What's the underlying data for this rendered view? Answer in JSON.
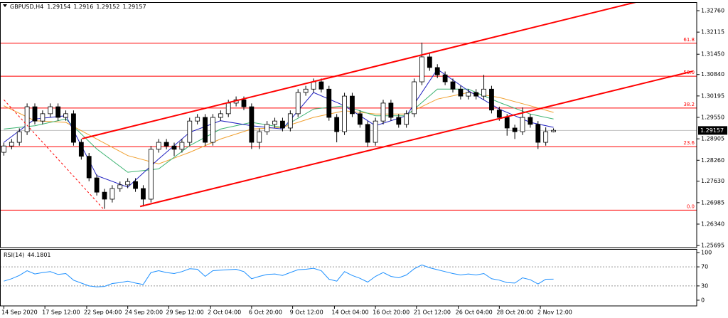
{
  "chart_data": {
    "type": "candlestick",
    "header": {
      "symbol": "GBPUSD,H4",
      "ohlc": [
        1.29154,
        1.2916,
        1.29152,
        1.29157
      ]
    },
    "xlim": [
      -0.5,
      89.5
    ],
    "ylim": [
      1.25634,
      1.33017
    ],
    "yticks": [
      {
        "value": 1.3276,
        "label": "1.32760"
      },
      1.32115,
      {
        "value": 1.3145,
        "label": "1.31450"
      },
      {
        "value": 1.3084,
        "label": "1.30840"
      },
      1.30195,
      {
        "value": 1.2955,
        "label": "1.29550"
      },
      1.28905,
      {
        "value": 1.2826,
        "label": "1.28260"
      },
      {
        "value": 1.2763,
        "label": "1.27630"
      },
      1.26985,
      {
        "value": 1.2634,
        "label": "1.26340"
      },
      1.25695
    ],
    "xticks": [
      {
        "value": 0,
        "label": "14 Sep 2020"
      },
      {
        "value": 5.3,
        "label": "17 Sep 12:00"
      },
      {
        "value": 10.7,
        "label": "22 Sep 04:00"
      },
      {
        "value": 16,
        "label": "24 Sep 20:00"
      },
      {
        "value": 21.3,
        "label": "29 Sep 12:00"
      },
      {
        "value": 26.7,
        "label": "2 Oct 04:00"
      },
      {
        "value": 32,
        "label": "6 Oct 20:00"
      },
      {
        "value": 37.3,
        "label": "9 Oct 12:00"
      },
      {
        "value": 42.7,
        "label": "14 Oct 04:00"
      },
      {
        "value": 48,
        "label": "16 Oct 20:00"
      },
      {
        "value": 53.3,
        "label": "21 Oct 12:00"
      },
      {
        "value": 58.7,
        "label": "26 Oct 04:00"
      },
      {
        "value": 64,
        "label": "28 Oct 20:00"
      },
      {
        "value": 69.3,
        "label": "2 Nov 12:00"
      }
    ],
    "candles": {
      "bull_color": "#ffffff",
      "bear_color": "#000000",
      "open": [
        1.285,
        1.2869,
        1.288,
        1.2912,
        1.2987,
        1.2944,
        1.2966,
        1.2987,
        1.2955,
        1.2966,
        1.288,
        1.2838,
        1.2773,
        1.273,
        1.2709,
        1.2741,
        1.2752,
        1.2762,
        1.2741,
        1.2709,
        1.2859,
        1.288,
        1.2869,
        1.2859,
        1.288,
        1.2944,
        1.2955,
        1.288,
        1.2955,
        1.2966,
        1.2998,
        1.3008,
        1.2987,
        1.288,
        1.2912,
        1.2934,
        1.2944,
        1.2923,
        1.2966,
        1.303,
        1.304,
        1.3062,
        1.304,
        1.2955,
        1.2912,
        1.3019,
        1.2966,
        1.2934,
        1.288,
        1.2944,
        1.2998,
        1.2955,
        1.2934,
        1.2966,
        1.3062,
        1.3137,
        1.3105,
        1.3083,
        1.3062,
        1.304,
        1.3019,
        1.303,
        1.3019,
        1.304,
        1.2977,
        1.2955,
        1.2923,
        1.2912,
        1.2955,
        1.2934,
        1.288,
        1.2912
      ],
      "high": [
        1.2879,
        1.289,
        1.2922,
        1.2997,
        1.2997,
        1.2976,
        1.2997,
        1.2997,
        1.2976,
        1.2976,
        1.289,
        1.2848,
        1.2783,
        1.274,
        1.2751,
        1.2762,
        1.2772,
        1.2772,
        1.2751,
        1.2869,
        1.289,
        1.289,
        1.2879,
        1.289,
        1.2954,
        1.2965,
        1.2965,
        1.2965,
        1.2976,
        1.3008,
        1.3018,
        1.3018,
        1.2997,
        1.2922,
        1.2944,
        1.2954,
        1.2954,
        1.2976,
        1.304,
        1.305,
        1.3072,
        1.3072,
        1.305,
        1.2965,
        1.3029,
        1.3029,
        1.2976,
        1.2944,
        1.2954,
        1.3008,
        1.3008,
        1.2965,
        1.2976,
        1.3072,
        1.318,
        1.3147,
        1.3115,
        1.3093,
        1.3072,
        1.305,
        1.304,
        1.304,
        1.3083,
        1.305,
        1.2987,
        1.2965,
        1.2933,
        1.2985,
        1.2965,
        1.2944,
        1.2925,
        1.2922
      ],
      "low": [
        1.284,
        1.2859,
        1.287,
        1.2902,
        1.2934,
        1.2934,
        1.2956,
        1.2945,
        1.2945,
        1.287,
        1.2828,
        1.2763,
        1.272,
        1.268,
        1.2699,
        1.2731,
        1.2742,
        1.2731,
        1.2687,
        1.2699,
        1.2849,
        1.2859,
        1.2839,
        1.2849,
        1.287,
        1.2934,
        1.287,
        1.287,
        1.2945,
        1.2956,
        1.2988,
        1.2977,
        1.286,
        1.286,
        1.2902,
        1.2924,
        1.2913,
        1.2913,
        1.2956,
        1.302,
        1.303,
        1.303,
        1.2945,
        1.288,
        1.2902,
        1.2956,
        1.2924,
        1.2866,
        1.287,
        1.2934,
        1.2945,
        1.2924,
        1.2924,
        1.2956,
        1.3052,
        1.3095,
        1.3073,
        1.3052,
        1.303,
        1.3009,
        1.3009,
        1.3009,
        1.3009,
        1.2967,
        1.2945,
        1.29,
        1.289,
        1.2902,
        1.2924,
        1.286,
        1.287,
        1.291
      ],
      "close": [
        1.2869,
        1.288,
        1.2912,
        1.2987,
        1.2944,
        1.2966,
        1.2987,
        1.2955,
        1.2966,
        1.288,
        1.2838,
        1.2773,
        1.273,
        1.2709,
        1.2741,
        1.2752,
        1.2762,
        1.2741,
        1.2709,
        1.2859,
        1.288,
        1.2869,
        1.2859,
        1.288,
        1.2944,
        1.2955,
        1.288,
        1.2955,
        1.2966,
        1.2998,
        1.3008,
        1.2987,
        1.288,
        1.2912,
        1.2934,
        1.2944,
        1.2923,
        1.2966,
        1.303,
        1.304,
        1.3062,
        1.304,
        1.2955,
        1.2912,
        1.3019,
        1.2966,
        1.2934,
        1.288,
        1.2944,
        1.2998,
        1.2955,
        1.2934,
        1.2966,
        1.3062,
        1.3137,
        1.3105,
        1.3083,
        1.3062,
        1.304,
        1.3019,
        1.303,
        1.3019,
        1.304,
        1.2977,
        1.2955,
        1.2923,
        1.2912,
        1.2955,
        1.2934,
        1.288,
        1.2912,
        1.2916
      ]
    },
    "moving_averages": [
      {
        "color": "#f0a030",
        "x": [
          0,
          4,
          8,
          12,
          16,
          20,
          24,
          28,
          32,
          36,
          40,
          44,
          48,
          52,
          56,
          60,
          64,
          68,
          71
        ],
        "values": [
          1.299,
          1.2945,
          1.294,
          1.289,
          1.284,
          1.2815,
          1.285,
          1.289,
          1.292,
          1.2925,
          1.2955,
          1.2975,
          1.2965,
          1.2965,
          1.301,
          1.303,
          1.3015,
          1.299,
          1.297
        ]
      },
      {
        "color": "#3cb371",
        "x": [
          0,
          4,
          8,
          12,
          16,
          20,
          24,
          28,
          32,
          36,
          40,
          44,
          48,
          52,
          56,
          60,
          64,
          68,
          71
        ],
        "values": [
          1.292,
          1.293,
          1.295,
          1.286,
          1.279,
          1.28,
          1.287,
          1.292,
          1.294,
          1.2925,
          1.298,
          1.299,
          1.296,
          1.296,
          1.304,
          1.304,
          1.3,
          1.2965,
          1.295
        ]
      },
      {
        "color": "#2020c0",
        "x": [
          0,
          4,
          8,
          12,
          16,
          20,
          24,
          28,
          32,
          36,
          40,
          44,
          48,
          52,
          56,
          60,
          64,
          68,
          71
        ],
        "values": [
          1.288,
          1.295,
          1.296,
          1.278,
          1.2745,
          1.283,
          1.291,
          1.2945,
          1.293,
          1.292,
          1.303,
          1.299,
          1.293,
          1.296,
          1.31,
          1.3035,
          1.298,
          1.294,
          1.2925
        ]
      }
    ],
    "trendlines": [
      {
        "color": "#ff0000",
        "style": "solid",
        "x": [
          10.1,
          81.7
        ],
        "y": [
          1.2891,
          1.3302
        ]
      },
      {
        "color": "#ff0000",
        "style": "solid",
        "x": [
          17.6,
          89
        ],
        "y": [
          1.2687,
          1.3094
        ]
      },
      {
        "color": "#ff0000",
        "style": "dashed",
        "x": [
          0,
          13
        ],
        "y": [
          1.3008,
          1.2676
        ]
      }
    ],
    "fibo": {
      "color": "#ff0000",
      "levels": [
        {
          "label": "0.0",
          "price": 1.2676
        },
        {
          "label": "23.6",
          "price": 1.2867
        },
        {
          "label": "38.2",
          "price": 1.2983
        },
        {
          "label": "50.0",
          "price": 1.3079
        },
        {
          "label": "61.8",
          "price": 1.3178
        }
      ]
    },
    "rsi": {
      "name": "RSI(14)",
      "color": "#1e90ff",
      "ylim": [
        -12,
        107.5
      ],
      "yticks": [
        100,
        70,
        30,
        0
      ],
      "levels": [
        70,
        30
      ],
      "values": [
        40,
        45,
        52,
        62,
        55,
        58,
        60,
        54,
        56,
        42,
        36,
        30,
        28,
        29,
        35,
        37,
        40,
        36,
        33,
        58,
        62,
        58,
        56,
        60,
        66,
        65,
        50,
        62,
        63,
        64,
        65,
        60,
        45,
        50,
        54,
        55,
        52,
        58,
        64,
        65,
        67,
        62,
        44,
        40,
        60,
        52,
        46,
        38,
        50,
        58,
        50,
        47,
        53,
        66,
        74,
        68,
        64,
        60,
        56,
        53,
        55,
        53,
        56,
        45,
        42,
        37,
        36,
        47,
        43,
        34,
        44,
        44.1801
      ]
    }
  }
}
